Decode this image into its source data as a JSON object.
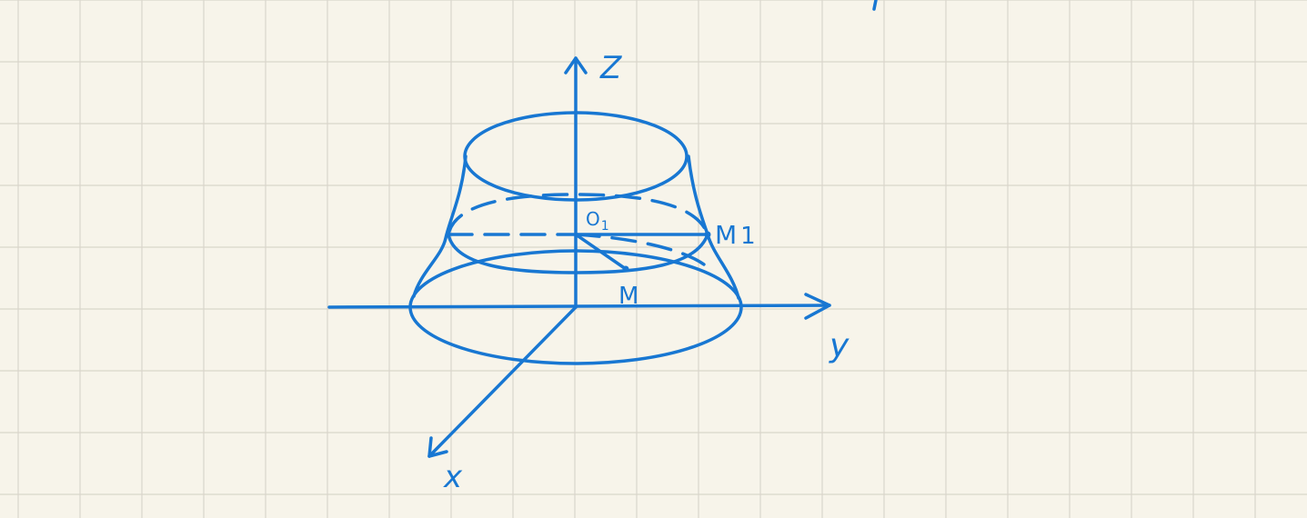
{
  "diagram": {
    "ink_color": "#1877d2",
    "paper_color": "#f7f4ea",
    "grid_color": "#d9d6cb",
    "axes": {
      "z_label": "Z",
      "y_label": "y",
      "x_label": "x"
    },
    "points": {
      "o1_label": "O",
      "o1_subscript": "1",
      "m1_label": "M",
      "m1_subscript": "1",
      "m_label": "M"
    }
  }
}
